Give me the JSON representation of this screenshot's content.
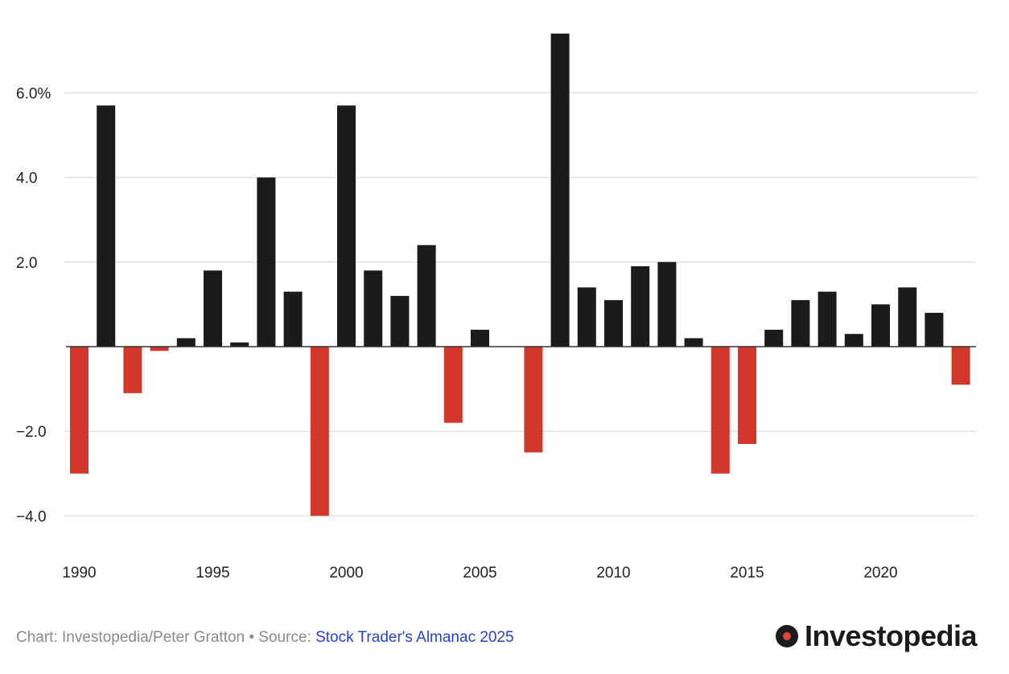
{
  "chart_data": {
    "type": "bar",
    "title": "",
    "xlabel": "",
    "ylabel": "",
    "ylim": [
      -4.7,
      7.4
    ],
    "y_ticks": [
      6.0,
      4.0,
      2.0,
      -2.0,
      -4.0
    ],
    "y_tick_labels": [
      "6.0%",
      "4.0",
      "2.0",
      "−2.0",
      "−4.0"
    ],
    "x_tick_labels": [
      "1990",
      "1995",
      "2000",
      "2005",
      "2010",
      "2015",
      "2020"
    ],
    "grid": true,
    "positive_color": "#1b1b1b",
    "negative_color": "#d2372c",
    "categories": [
      1990,
      1991,
      1992,
      1993,
      1994,
      1995,
      1996,
      1997,
      1998,
      1999,
      2000,
      2001,
      2002,
      2003,
      2004,
      2005,
      2006,
      2007,
      2008,
      2009,
      2010,
      2011,
      2012,
      2013,
      2014,
      2015,
      2016,
      2017,
      2018,
      2019,
      2020,
      2021,
      2022,
      2023
    ],
    "values": [
      -3.0,
      5.7,
      -1.1,
      -0.1,
      0.2,
      1.8,
      0.1,
      4.0,
      1.3,
      -4.0,
      5.7,
      1.8,
      1.2,
      2.4,
      -1.8,
      0.4,
      0.0,
      -2.5,
      7.4,
      1.4,
      1.1,
      1.9,
      2.0,
      0.2,
      -3.0,
      -2.3,
      0.4,
      1.1,
      1.3,
      0.3,
      1.0,
      1.4,
      0.8,
      -0.9
    ]
  },
  "footer": {
    "credit": "Chart: Investopedia/Peter Gratton • Source: ",
    "source_link": "Stock Trader's Almanac 2025"
  },
  "brand": {
    "logo_text": "Investopedia"
  }
}
